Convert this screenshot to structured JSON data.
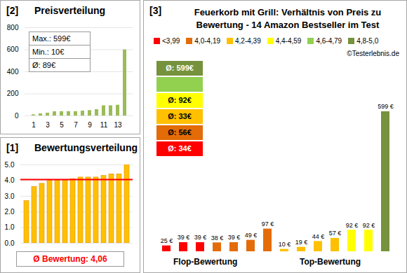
{
  "chart_data": [
    {
      "panel": "[2]",
      "title": "Preisverteilung",
      "type": "bar",
      "categories": [
        1,
        null,
        3,
        null,
        5,
        null,
        7,
        null,
        9,
        null,
        11,
        null,
        13,
        null
      ],
      "values": [
        10,
        19,
        25,
        38,
        39,
        39,
        39,
        44,
        49,
        57,
        92,
        92,
        97,
        599
      ],
      "color": "#9bbb59",
      "ylim": [
        0,
        800
      ],
      "yticks": [
        0,
        200,
        400,
        600,
        800
      ],
      "grid": true,
      "stats": [
        "Max.: 599€",
        "Min.: 10€",
        "Ø: 89€"
      ]
    },
    {
      "panel": "[1]",
      "title": "Bewertungsverteilung",
      "type": "bar",
      "values": [
        2.7,
        3.6,
        3.8,
        4.0,
        4.0,
        4.0,
        4.1,
        4.2,
        4.2,
        4.2,
        4.3,
        4.4,
        4.4,
        5.0
      ],
      "color": "#ffc000",
      "ylim": [
        0,
        5
      ],
      "yticks": [
        0,
        1,
        2,
        3,
        4,
        5
      ],
      "grid": true,
      "tick_labels": "y",
      "mean": 4.06,
      "mean_label": "Ø Bewertung: 4,06",
      "mean_color": "#ff0000"
    },
    {
      "panel": "[3]",
      "title": "Feuerkorb mit Grill: Verhältnis von Preis zu Bewertung - 14 Amazon Bestseller im Test",
      "type": "bar",
      "values": [
        25,
        39,
        39,
        38,
        39,
        49,
        97,
        10,
        19,
        44,
        57,
        92,
        92,
        599
      ],
      "value_labels": [
        "25 €",
        "39 €",
        "39 €",
        "38 €",
        "39 €",
        "49 €",
        "97 €",
        "10 €",
        "19 €",
        "44 €",
        "57 €",
        "92 €",
        "92 €",
        "599 €"
      ],
      "colors": [
        "#ff0000",
        "#ff0000",
        "#ff0000",
        "#e36c09",
        "#e36c09",
        "#e36c09",
        "#e36c09",
        "#ffc000",
        "#ffc000",
        "#ffc000",
        "#ffc000",
        "#ffff00",
        "#ffff00",
        "#76923c"
      ],
      "data_labels": true,
      "tick_labels": false,
      "ylim": [
        0,
        599
      ],
      "legend_items": [
        {
          "label": "<3,99",
          "color": "#ff0000"
        },
        {
          "label": "4,0-4,19",
          "color": "#e36c09"
        },
        {
          "label": "4,2-4,39",
          "color": "#ffc000"
        },
        {
          "label": "4,4-4,59",
          "color": "#ffff00"
        },
        {
          "label": "4,6-4,79",
          "color": "#92d050"
        },
        {
          "label": "4,8-5,0",
          "color": "#76923c"
        }
      ],
      "group_averages": [
        {
          "label": "Ø: 599€",
          "color": "#76923c"
        },
        {
          "color": "#92d050"
        },
        {
          "label": "Ø: 92€",
          "color": "#ffff00"
        },
        {
          "label": "Ø: 33€",
          "color": "#ffc000"
        },
        {
          "label": "Ø: 56€",
          "color": "#e36c09"
        },
        {
          "label": "Ø: 34€",
          "color": "#ff0000"
        }
      ],
      "source": "©Testerlebnis.de",
      "annotations": [
        "Flop-Bewertung",
        "Top-Bewertung"
      ]
    }
  ]
}
